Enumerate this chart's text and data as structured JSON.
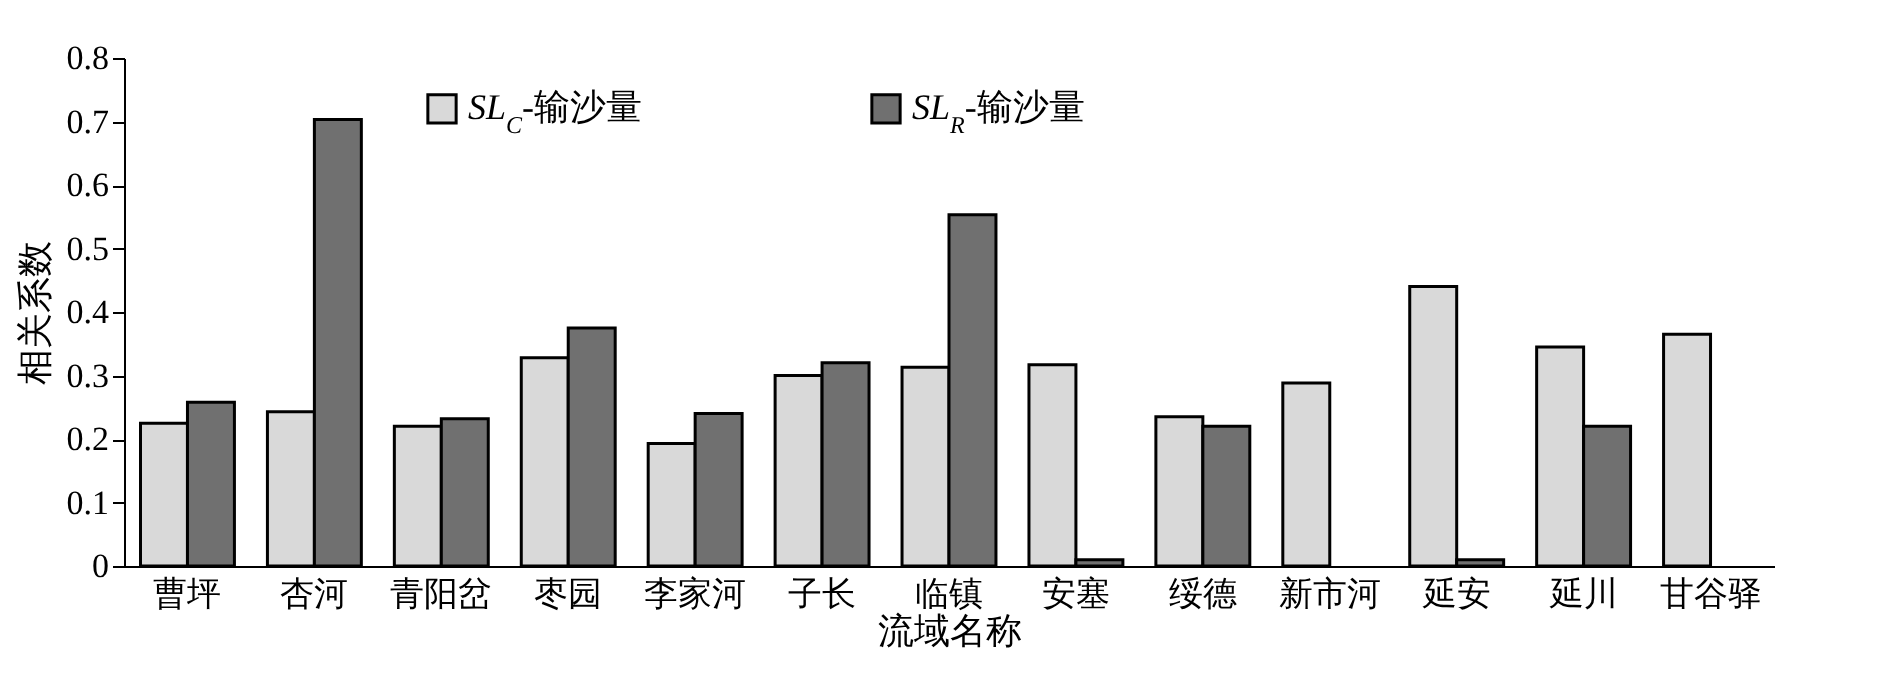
{
  "chart_data": {
    "type": "bar",
    "xlabel": "流域名称",
    "ylabel": "相关系数",
    "categories": [
      "曹坪",
      "杏河",
      "青阳岔",
      "枣园",
      "李家河",
      "子长",
      "临镇",
      "安塞",
      "绥德",
      "新市河",
      "延安",
      "延川",
      "甘谷驿"
    ],
    "series": [
      {
        "name": "SL$_{C}$-输沙量",
        "color": "#d9d9d9",
        "values": [
          0.225,
          0.243,
          0.22,
          0.328,
          0.193,
          0.3,
          0.313,
          0.317,
          0.235,
          0.288,
          0.44,
          0.345,
          0.365
        ]
      },
      {
        "name": "SL$_{R}$-输沙量",
        "color": "#707070",
        "values": [
          0.258,
          0.703,
          0.232,
          0.375,
          0.24,
          0.32,
          0.553,
          0.01,
          0.22,
          null,
          0.01,
          0.22,
          null
        ]
      }
    ],
    "ylim": [
      0,
      0.8
    ],
    "yticks": [
      0,
      0.1,
      0.2,
      0.3,
      0.4,
      0.5,
      0.6,
      0.7,
      0.8
    ],
    "grid": false,
    "legend": "top"
  }
}
